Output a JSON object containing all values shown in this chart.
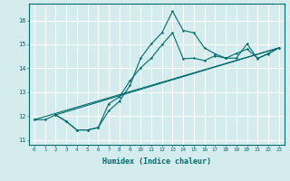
{
  "xlabel": "Humidex (Indice chaleur)",
  "background_color": "#d4ecee",
  "grid_color": "#ffffff",
  "line_color": "#006b6b",
  "xlim": [
    -0.5,
    23.5
  ],
  "ylim": [
    10.8,
    16.7
  ],
  "xticks": [
    0,
    1,
    2,
    3,
    4,
    5,
    6,
    7,
    8,
    9,
    10,
    11,
    12,
    13,
    14,
    15,
    16,
    17,
    18,
    19,
    20,
    21,
    22,
    23
  ],
  "yticks": [
    11,
    12,
    13,
    14,
    15,
    16
  ],
  "curve1_x": [
    0,
    1,
    2,
    3,
    4,
    5,
    6,
    7,
    8,
    9,
    10,
    11,
    12,
    13,
    14,
    15,
    16,
    17,
    18,
    19,
    20,
    21,
    22,
    23
  ],
  "curve1_y": [
    11.85,
    11.85,
    12.05,
    11.78,
    11.42,
    11.42,
    11.52,
    12.22,
    12.62,
    13.28,
    14.42,
    15.02,
    15.48,
    16.38,
    15.58,
    15.48,
    14.85,
    14.6,
    14.42,
    14.42,
    15.02,
    14.4,
    14.62,
    14.85
  ],
  "curve2_x": [
    2,
    3,
    4,
    5,
    6,
    7,
    8,
    9,
    10,
    11,
    12,
    13,
    14,
    15,
    16,
    17,
    18,
    19,
    20,
    21,
    22,
    23
  ],
  "curve2_y": [
    12.05,
    11.78,
    11.42,
    11.42,
    11.52,
    12.52,
    12.8,
    13.48,
    14.02,
    14.42,
    14.98,
    15.48,
    14.4,
    14.42,
    14.32,
    14.52,
    14.42,
    14.62,
    14.8,
    14.42,
    14.6,
    14.85
  ],
  "line1_x": [
    0,
    23
  ],
  "line1_y": [
    11.85,
    14.85
  ],
  "line2_x": [
    2,
    23
  ],
  "line2_y": [
    12.05,
    14.85
  ]
}
